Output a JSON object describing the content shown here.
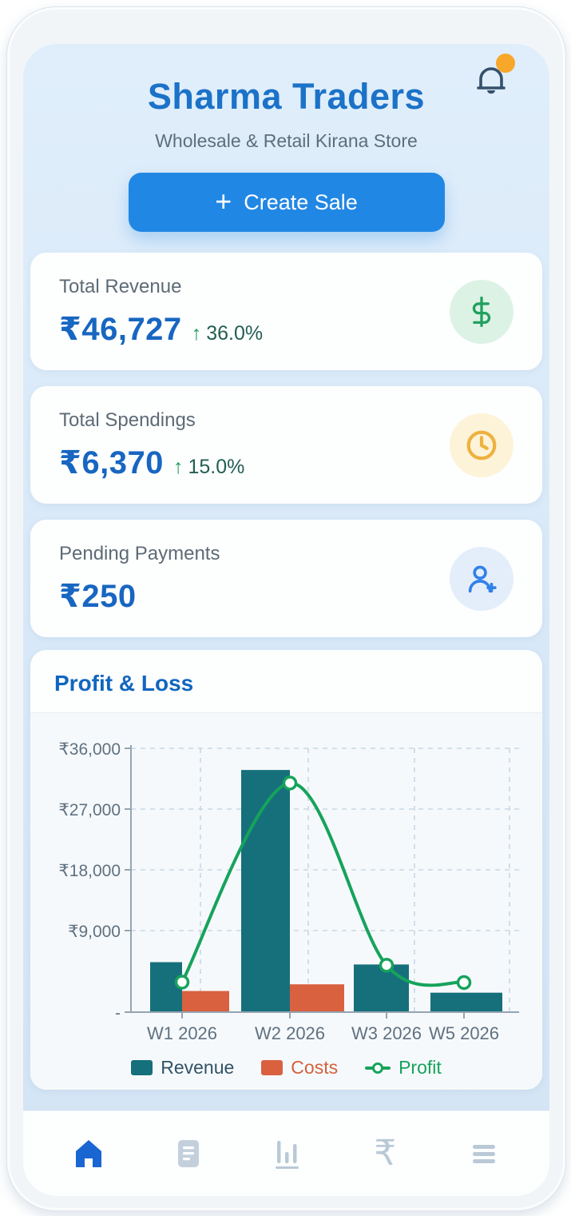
{
  "header": {
    "title": "Sharma Traders",
    "subtitle": "Wholesale & Retail Kirana Store",
    "notification_badge": true
  },
  "create_sale": {
    "plus": "+",
    "label": "Create Sale"
  },
  "stats": [
    {
      "label": "Total Revenue",
      "value": "₹46,727",
      "trend_arrow": "↑",
      "trend_pct": "36.0%",
      "icon": "dollar-sign",
      "icon_color": "#21a05e",
      "icon_bg": "#dcf2e5"
    },
    {
      "label": "Total Spendings",
      "value": "₹6,370",
      "trend_arrow": "↑",
      "trend_pct": "15.0%",
      "icon": "clock",
      "icon_color": "#eeb140",
      "icon_bg": "#fdf3d8"
    },
    {
      "label": "Pending Payments",
      "value": "₹250",
      "icon": "user-plus",
      "icon_color": "#3181e8",
      "icon_bg": "#e4eefb"
    }
  ],
  "profit_loss": {
    "title": "Profit & Loss"
  },
  "chart_data": {
    "type": "bar+line",
    "title": "Profit & Loss",
    "categories": [
      "W1 2026",
      "W2 2026",
      "W3 2026",
      "W5 2026"
    ],
    "series": [
      {
        "name": "Revenue",
        "type": "bar",
        "color": "#16707b",
        "label_color": "#315366",
        "values": [
          6500,
          31500,
          6200,
          2530
        ]
      },
      {
        "name": "Costs",
        "type": "bar",
        "color": "#d96140",
        "label_color": "#d4603c",
        "values": [
          2750,
          3620,
          0,
          0
        ]
      },
      {
        "name": "Profit",
        "type": "line",
        "color": "#16a35c",
        "label_color": "#16a35c",
        "values": [
          3900,
          29800,
          6100,
          3850
        ]
      }
    ],
    "y_ticks": [
      {
        "label": "₹36,000",
        "value": 36000
      },
      {
        "label": "₹27,000",
        "value": 27000
      },
      {
        "label": "₹18,000",
        "value": 18000
      },
      {
        "label": "₹9,000",
        "value": 9000
      },
      {
        "label": "-",
        "value": 0
      }
    ],
    "ylim": [
      0,
      36000
    ],
    "grid": "dashed",
    "legend_position": "bottom"
  },
  "bottom_nav": {
    "items": [
      {
        "icon": "home",
        "active": true
      },
      {
        "icon": "document",
        "active": false
      },
      {
        "icon": "bar-chart",
        "active": false
      },
      {
        "icon": "rupee",
        "active": false,
        "glyph": "₹"
      },
      {
        "icon": "menu",
        "active": false
      }
    ]
  },
  "colors": {
    "screen_bg": "#d9e9f8",
    "title_blue": "#1b72c8",
    "button_blue": "#2187e4",
    "value_blue": "#1766c1",
    "trend_green": "#1a9d58",
    "trend_text": "#235e52",
    "badge_orange": "#f7a82a",
    "bell": "#35506c",
    "nav_active": "#1966d2",
    "nav_inactive": "#b9c9d6",
    "axis_text": "#5f7181",
    "gridline": "#c7d7e6"
  }
}
